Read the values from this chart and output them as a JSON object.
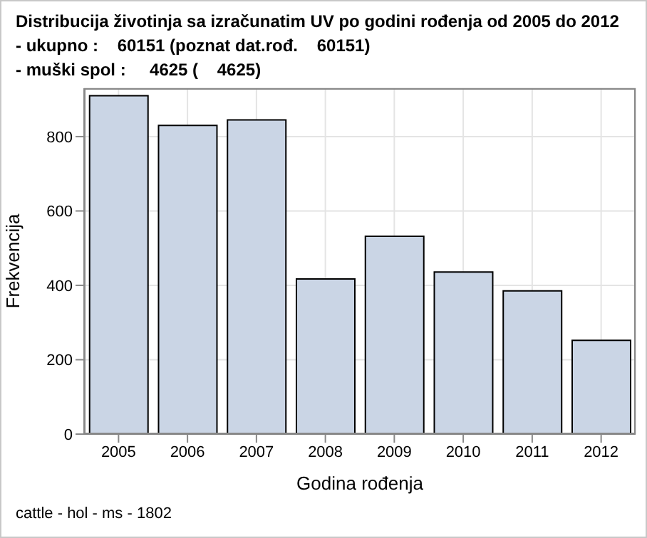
{
  "chart_data": {
    "type": "bar",
    "title": "Distribucija životinja sa izračunatim UV po godini rođenja od 2005 do 2012",
    "subtitle": "- ukupno :    60151 (poznat dat.rođ.    60151)\n- muški spol :     4625 (    4625)",
    "xlabel": "Godina rođenja",
    "ylabel": "Frekvencija",
    "annotations": [
      "cattle - hol - ms - 1802"
    ],
    "categories": [
      "2005",
      "2006",
      "2007",
      "2008",
      "2009",
      "2010",
      "2011",
      "2012"
    ],
    "values": [
      910,
      830,
      845,
      417,
      532,
      436,
      385,
      252
    ],
    "color": "#cad5e5",
    "ylim": [
      0,
      930
    ],
    "yticks": [
      0,
      200,
      400,
      600,
      800
    ],
    "grid": true
  }
}
